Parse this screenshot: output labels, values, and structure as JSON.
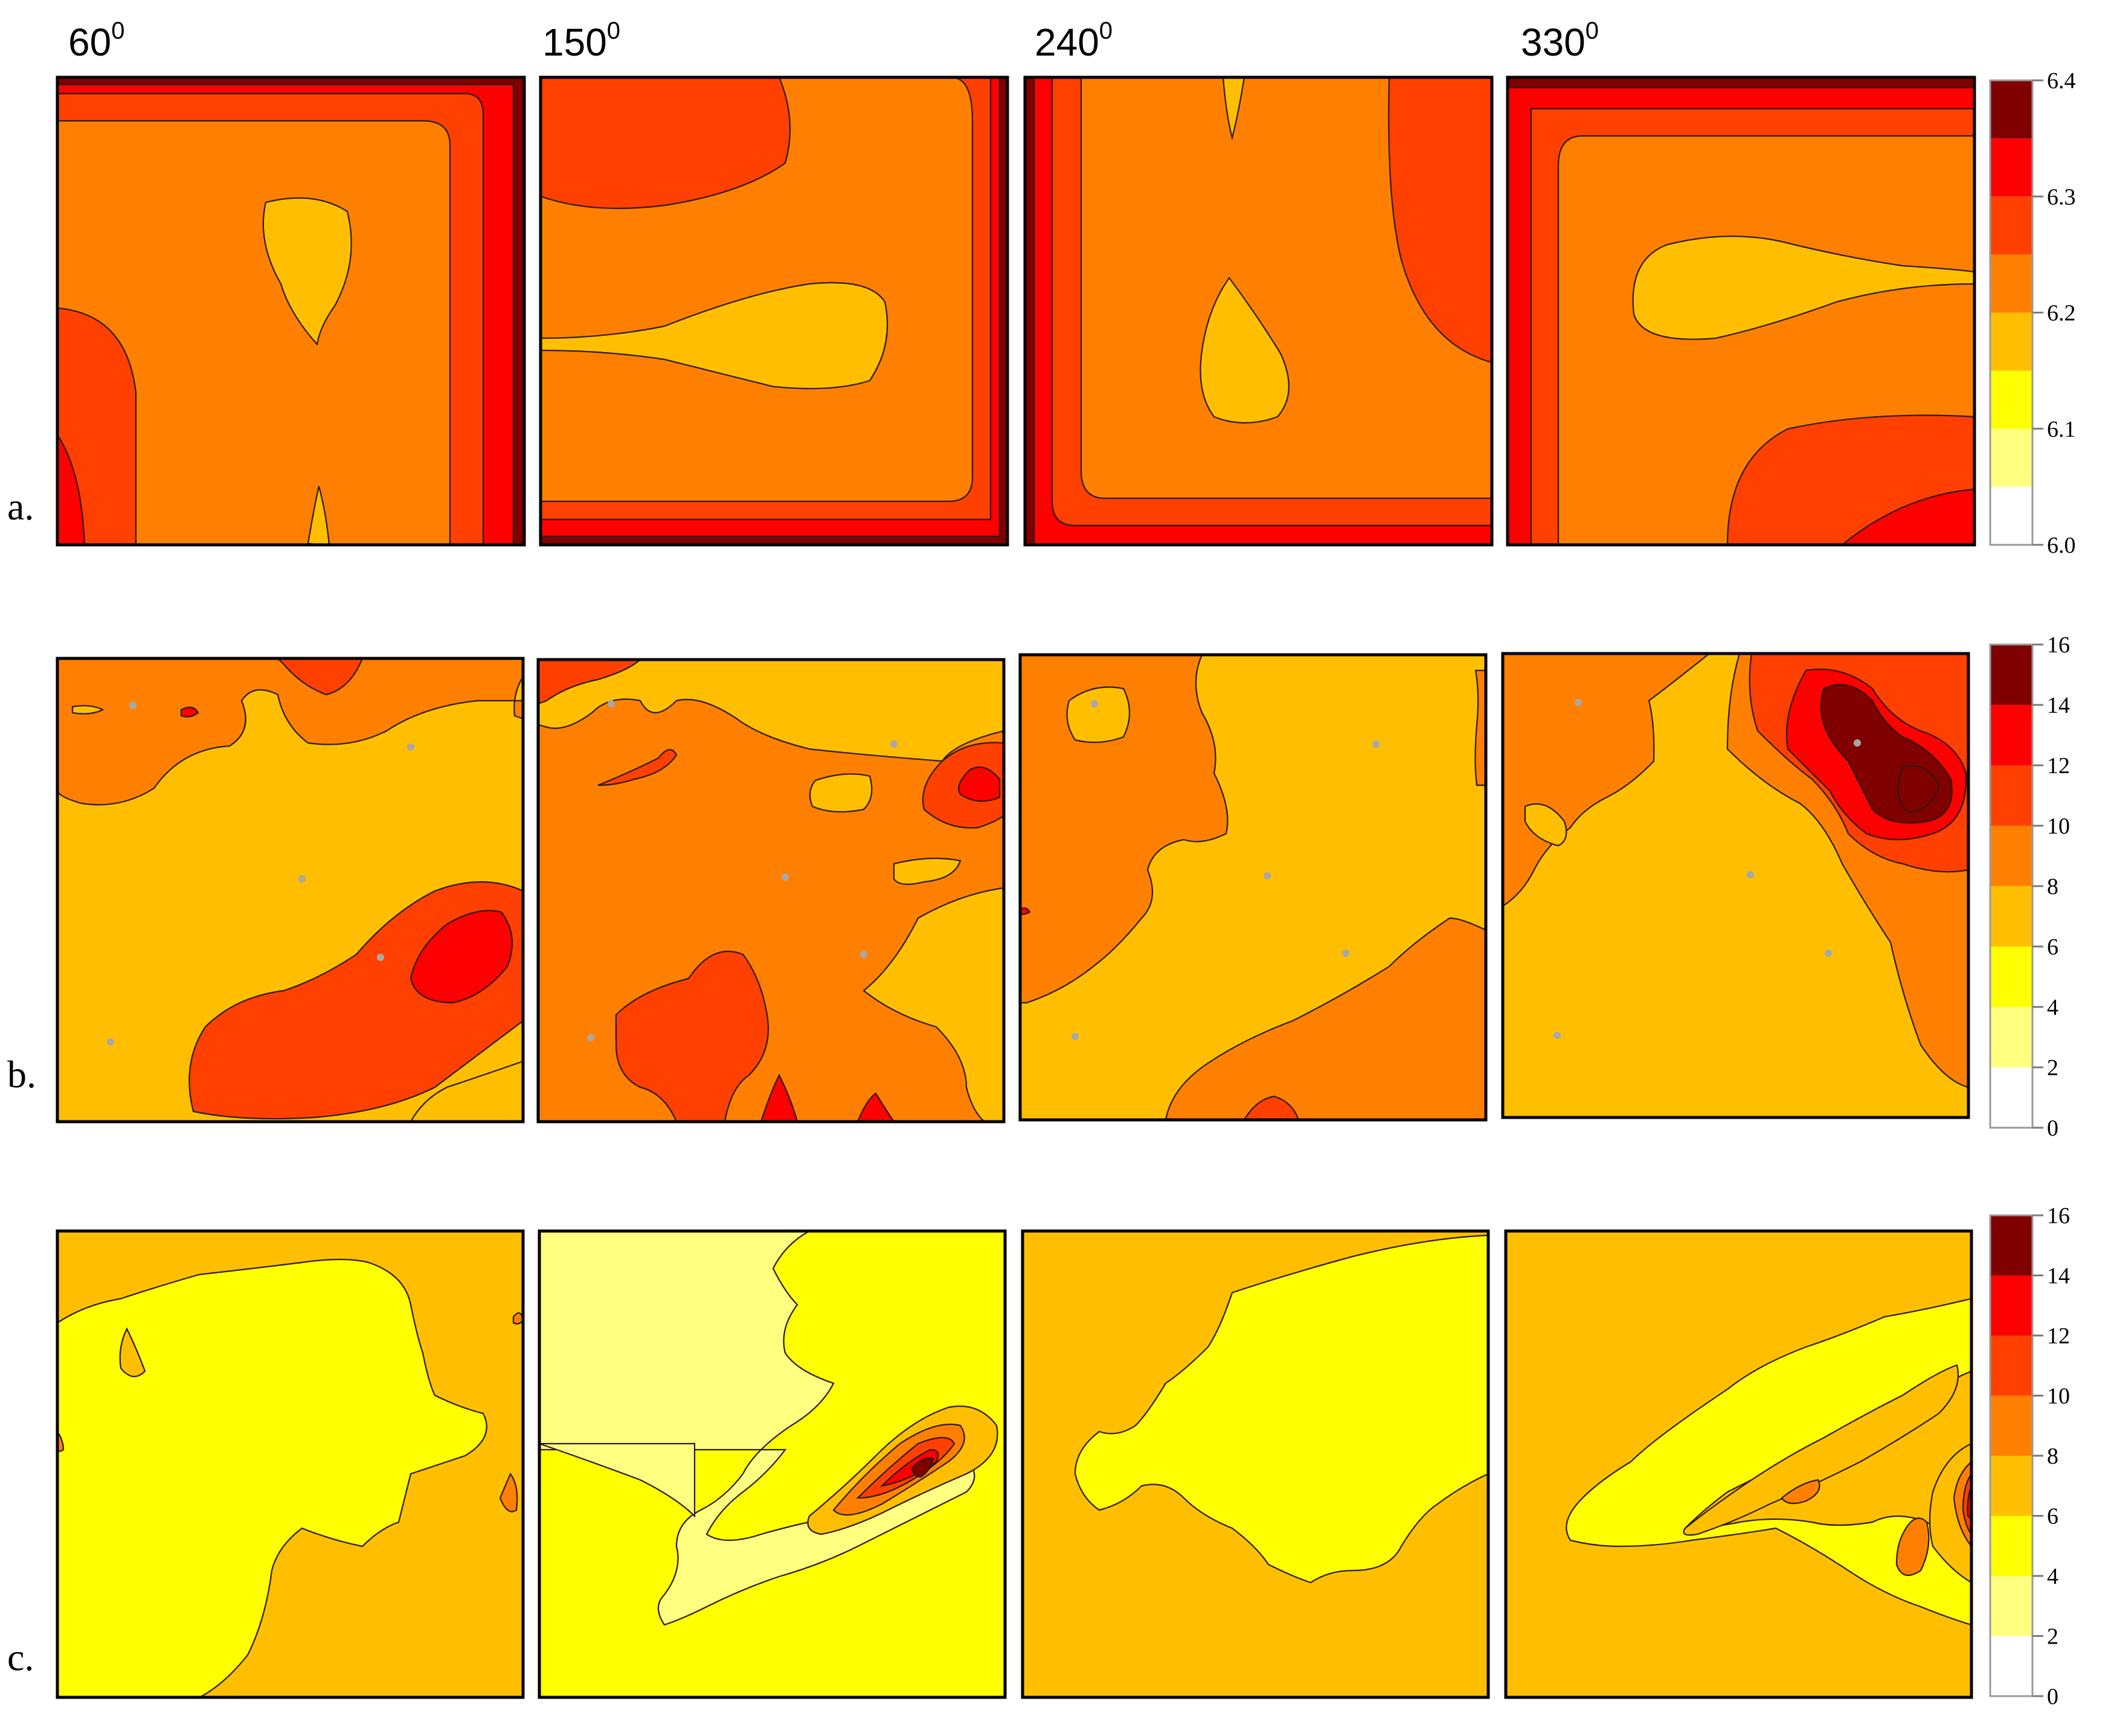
{
  "columns": [
    "60",
    "150",
    "240",
    "330"
  ],
  "degree_superscript": "0",
  "rows": [
    {
      "label": "a."
    },
    {
      "label": "b."
    },
    {
      "label": "c."
    }
  ],
  "colors": {
    "level_0": "#ffffff",
    "level_1": "#ffff80",
    "level_2": "#ffff00",
    "level_3": "#ffbf00",
    "level_4": "#ff8000",
    "level_5": "#ff4000",
    "level_6": "#ff0000",
    "level_7": "#800000",
    "contour_line": "#2a1a10",
    "sample_point": "#a8a8a8"
  },
  "chart_data": [
    {
      "type": "heatmap",
      "row": "a.",
      "panels": [
        "60",
        "150",
        "240",
        "330"
      ],
      "colorbar": {
        "ticks": [
          "6.0",
          "6.1",
          "6.2",
          "6.3",
          "6.4"
        ],
        "range": [
          6.0,
          6.4
        ],
        "levels": [
          6.0,
          6.05,
          6.1,
          6.15,
          6.2,
          6.25,
          6.3,
          6.35,
          6.4
        ]
      }
    },
    {
      "type": "heatmap",
      "row": "b.",
      "panels": [
        "60",
        "150",
        "240",
        "330"
      ],
      "colorbar": {
        "ticks": [
          "0",
          "2",
          "4",
          "6",
          "8",
          "10",
          "12",
          "14",
          "16"
        ],
        "range": [
          0,
          16
        ],
        "levels": [
          0,
          2,
          4,
          6,
          8,
          10,
          12,
          14,
          16
        ]
      }
    },
    {
      "type": "heatmap",
      "row": "c.",
      "panels": [
        "60",
        "150",
        "240",
        "330"
      ],
      "colorbar": {
        "ticks": [
          "0",
          "2",
          "4",
          "6",
          "8",
          "10",
          "12",
          "14",
          "16"
        ],
        "range": [
          0,
          16
        ],
        "levels": [
          0,
          2,
          4,
          6,
          8,
          10,
          12,
          14,
          16
        ]
      }
    }
  ]
}
